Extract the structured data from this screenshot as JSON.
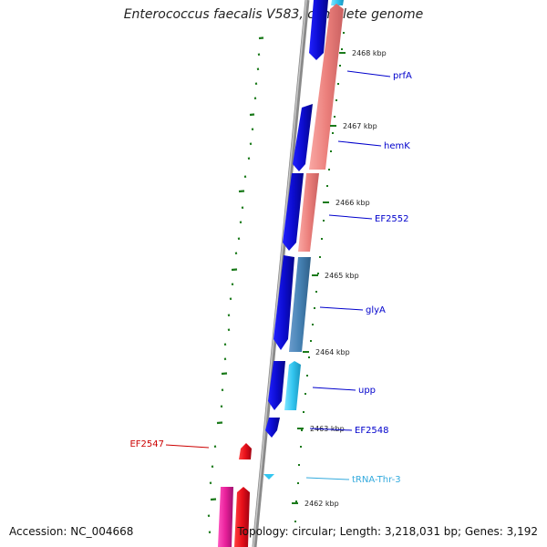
{
  "header": {
    "title": "Enterococcus faecalis V583, complete genome"
  },
  "footer": {
    "accession": "Accession: NC_004668",
    "topology": "Topology: circular; Length: 3,218,031 bp; Genes: 3,192"
  },
  "colors": {
    "forward_cds": "#1010e8",
    "reverse_cds": "#f08080",
    "reverse_cds_2": "#4682b4",
    "trna": "#33c6f0",
    "red_cds": "#e8101a",
    "pink_cds": "#e8209a",
    "backbone": "#8a8a8a",
    "gc_tick": "#1a7a1a",
    "label_blue": "#0000cc",
    "label_red": "#cc0000",
    "label_cyan": "#33aadd"
  },
  "scale_ticks": [
    {
      "label": "2468 kbp"
    },
    {
      "label": "2467 kbp"
    },
    {
      "label": "2466 kbp"
    },
    {
      "label": "2465 kbp"
    },
    {
      "label": "2464 kbp"
    },
    {
      "label": "2463 kbp"
    },
    {
      "label": "2462 kbp"
    }
  ],
  "gene_labels": [
    {
      "name": "prfA",
      "color": "label_blue"
    },
    {
      "name": "hemK",
      "color": "label_blue"
    },
    {
      "name": "EF2552",
      "color": "label_blue"
    },
    {
      "name": "glyA",
      "color": "label_blue"
    },
    {
      "name": "upp",
      "color": "label_blue"
    },
    {
      "name": "EF2548",
      "color": "label_blue"
    },
    {
      "name": "tRNA-Thr-3",
      "color": "label_cyan"
    },
    {
      "name": "EF2547",
      "color": "label_red"
    }
  ]
}
